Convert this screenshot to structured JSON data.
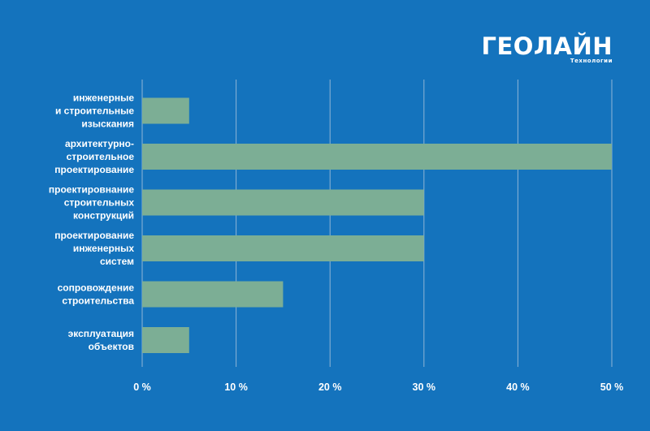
{
  "brand": {
    "name": "ГЕОЛАЙН",
    "tagline": "Технологии"
  },
  "colors": {
    "background": "#1473bd",
    "bar": "#7cae95",
    "grid": "#8fb5d6",
    "text": "#ffffff"
  },
  "chart_data": {
    "type": "bar",
    "orientation": "horizontal",
    "categories": [
      [
        "инженерные",
        "и строительные",
        "изыскания"
      ],
      [
        "архитектурно-",
        "строительное",
        "проектирование"
      ],
      [
        "проектировнание",
        "строительных",
        "конструкций"
      ],
      [
        "проектирование",
        "инженерных",
        "систем"
      ],
      [
        "сопровождение",
        "строительства"
      ],
      [
        "эксплуатация",
        "объектов"
      ]
    ],
    "values": [
      5,
      50,
      30,
      30,
      15,
      5
    ],
    "xlim": [
      0,
      50
    ],
    "xticks": [
      0,
      10,
      20,
      30,
      40,
      50
    ],
    "tick_suffix": " %",
    "grid": true,
    "legend": "none",
    "title": "",
    "xlabel": "",
    "ylabel": ""
  }
}
